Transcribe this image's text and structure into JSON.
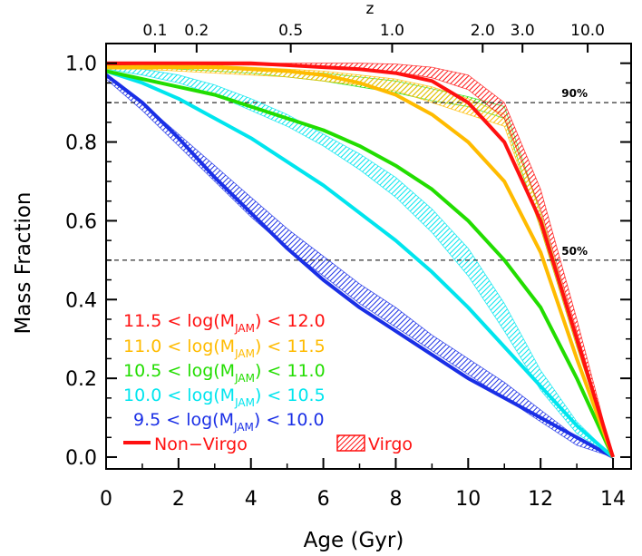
{
  "chart_data": {
    "type": "line",
    "xlabel": "Age (Gyr)",
    "ylabel": "Mass Fraction",
    "top_axis_label": "z",
    "xlim": [
      0,
      14.5
    ],
    "ylim": [
      -0.03,
      1.05
    ],
    "x_ticks": [
      0,
      2,
      4,
      6,
      8,
      10,
      12,
      14
    ],
    "x_tick_labels": [
      "0",
      "2",
      "4",
      "6",
      "8",
      "10",
      "12",
      "14"
    ],
    "y_ticks": [
      0.0,
      0.2,
      0.4,
      0.6,
      0.8,
      1.0
    ],
    "y_tick_labels": [
      "0.0",
      "0.2",
      "0.4",
      "0.6",
      "0.8",
      "1.0"
    ],
    "top_ticks": [
      {
        "label": "0.1",
        "age": 1.35
      },
      {
        "label": "0.2",
        "age": 2.5
      },
      {
        "label": "0.5",
        "age": 5.1
      },
      {
        "label": "1.0",
        "age": 7.9
      },
      {
        "label": "2.0",
        "age": 10.4
      },
      {
        "label": "3.0",
        "age": 11.5
      },
      {
        "label": "10.0",
        "age": 13.3
      }
    ],
    "reference_lines": [
      {
        "y": 0.9,
        "label": "90%"
      },
      {
        "y": 0.5,
        "label": "50%"
      }
    ],
    "legend": {
      "line_label": "Non−Virgo",
      "band_label": "Virgo",
      "sample_color": "#ff1010"
    },
    "series": [
      {
        "name": "11.5 < log(M_JAM) < 12.0",
        "lo": "11.5",
        "hi": "12.0",
        "color": "#ff1010",
        "x": [
          0,
          1,
          2,
          3,
          4,
          5,
          6,
          7,
          8,
          9,
          10,
          11,
          12,
          13,
          14
        ],
        "values": [
          1.0,
          1.0,
          1.0,
          1.0,
          1.0,
          0.995,
          0.99,
          0.985,
          0.975,
          0.955,
          0.9,
          0.8,
          0.6,
          0.3,
          0.0
        ],
        "band_x": [
          0,
          1,
          2,
          3,
          4,
          5,
          6,
          7,
          8,
          9,
          10,
          11,
          12,
          13,
          14
        ],
        "band_lo": [
          0.995,
          0.997,
          0.997,
          0.996,
          0.995,
          0.993,
          0.99,
          0.985,
          0.978,
          0.963,
          0.933,
          0.86,
          0.63,
          0.32,
          0.0
        ],
        "band_hi": [
          1.0,
          1.0,
          1.0,
          1.0,
          1.0,
          1.0,
          1.0,
          1.0,
          0.998,
          0.99,
          0.97,
          0.9,
          0.68,
          0.35,
          0.0
        ]
      },
      {
        "name": "11.0 < log(M_JAM) < 11.5",
        "lo": "11.0",
        "hi": "11.5",
        "color": "#ffbb00",
        "x": [
          0,
          1,
          2,
          3,
          4,
          5,
          6,
          7,
          8,
          9,
          10,
          11,
          12,
          13,
          14
        ],
        "values": [
          0.99,
          0.99,
          0.99,
          0.99,
          0.985,
          0.98,
          0.97,
          0.95,
          0.92,
          0.87,
          0.8,
          0.7,
          0.52,
          0.25,
          0.0
        ],
        "band_x": [
          0,
          1,
          2,
          3,
          4,
          5,
          6,
          7,
          8,
          9,
          10,
          11,
          12,
          13,
          14
        ],
        "band_lo": [
          0.985,
          0.985,
          0.98,
          0.975,
          0.97,
          0.965,
          0.955,
          0.945,
          0.93,
          0.9,
          0.87,
          0.84,
          0.58,
          0.28,
          0.0
        ],
        "band_hi": [
          0.995,
          0.995,
          0.995,
          0.995,
          0.99,
          0.985,
          0.98,
          0.97,
          0.96,
          0.94,
          0.91,
          0.87,
          0.62,
          0.31,
          0.0
        ]
      },
      {
        "name": "10.5 < log(M_JAM) < 11.0",
        "lo": "10.5",
        "hi": "11.0",
        "color": "#22dd00",
        "x": [
          0,
          1,
          2,
          3,
          4,
          5,
          6,
          7,
          8,
          9,
          10,
          11,
          12,
          13,
          14
        ],
        "values": [
          0.98,
          0.96,
          0.94,
          0.92,
          0.89,
          0.86,
          0.83,
          0.79,
          0.74,
          0.68,
          0.6,
          0.5,
          0.38,
          0.2,
          0.0
        ],
        "band_x": [
          0,
          1,
          2,
          3,
          4,
          5,
          6,
          7,
          8,
          9,
          10,
          11,
          12,
          13,
          14
        ],
        "band_lo": [
          0.99,
          0.99,
          0.985,
          0.98,
          0.975,
          0.965,
          0.955,
          0.94,
          0.925,
          0.905,
          0.89,
          0.86,
          0.58,
          0.28,
          0.0
        ],
        "band_hi": [
          0.995,
          0.995,
          0.995,
          0.99,
          0.985,
          0.98,
          0.975,
          0.965,
          0.955,
          0.935,
          0.915,
          0.89,
          0.62,
          0.31,
          0.0
        ]
      },
      {
        "name": "10.0 < log(M_JAM) < 10.5",
        "lo": "10.0",
        "hi": "10.5",
        "color": "#00e5ee",
        "x": [
          0,
          1,
          2,
          3,
          4,
          5,
          6,
          7,
          8,
          9,
          10,
          11,
          12,
          13,
          14
        ],
        "values": [
          0.98,
          0.95,
          0.91,
          0.86,
          0.81,
          0.75,
          0.69,
          0.62,
          0.55,
          0.47,
          0.38,
          0.28,
          0.18,
          0.08,
          0.0
        ],
        "band_x": [
          0,
          1,
          2,
          3,
          4,
          5,
          6,
          7,
          8,
          9,
          10,
          11,
          12,
          13,
          14
        ],
        "band_lo": [
          0.985,
          0.97,
          0.95,
          0.92,
          0.88,
          0.84,
          0.79,
          0.73,
          0.66,
          0.57,
          0.46,
          0.32,
          0.17,
          0.06,
          0.0
        ],
        "band_hi": [
          0.995,
          0.985,
          0.97,
          0.945,
          0.91,
          0.87,
          0.82,
          0.77,
          0.71,
          0.63,
          0.53,
          0.39,
          0.22,
          0.09,
          0.0
        ]
      },
      {
        "name": "9.5 < log(M_JAM) < 10.0",
        "lo": "9.5",
        "hi": "10.0",
        "color": "#1a2fe6",
        "x": [
          0,
          1,
          2,
          3,
          4,
          5,
          6,
          7,
          8,
          9,
          10,
          11,
          12,
          13,
          14
        ],
        "values": [
          0.97,
          0.9,
          0.81,
          0.71,
          0.62,
          0.53,
          0.45,
          0.38,
          0.32,
          0.26,
          0.2,
          0.15,
          0.1,
          0.05,
          0.0
        ],
        "band_x": [
          0,
          1,
          2,
          3,
          4,
          5,
          6,
          7,
          8,
          9,
          10,
          11,
          12,
          13,
          14
        ],
        "band_lo": [
          0.96,
          0.88,
          0.79,
          0.7,
          0.61,
          0.53,
          0.46,
          0.39,
          0.33,
          0.27,
          0.21,
          0.15,
          0.09,
          0.03,
          0.0
        ],
        "band_hi": [
          0.975,
          0.9,
          0.82,
          0.74,
          0.66,
          0.58,
          0.51,
          0.44,
          0.38,
          0.31,
          0.25,
          0.19,
          0.12,
          0.05,
          0.0
        ]
      }
    ]
  }
}
